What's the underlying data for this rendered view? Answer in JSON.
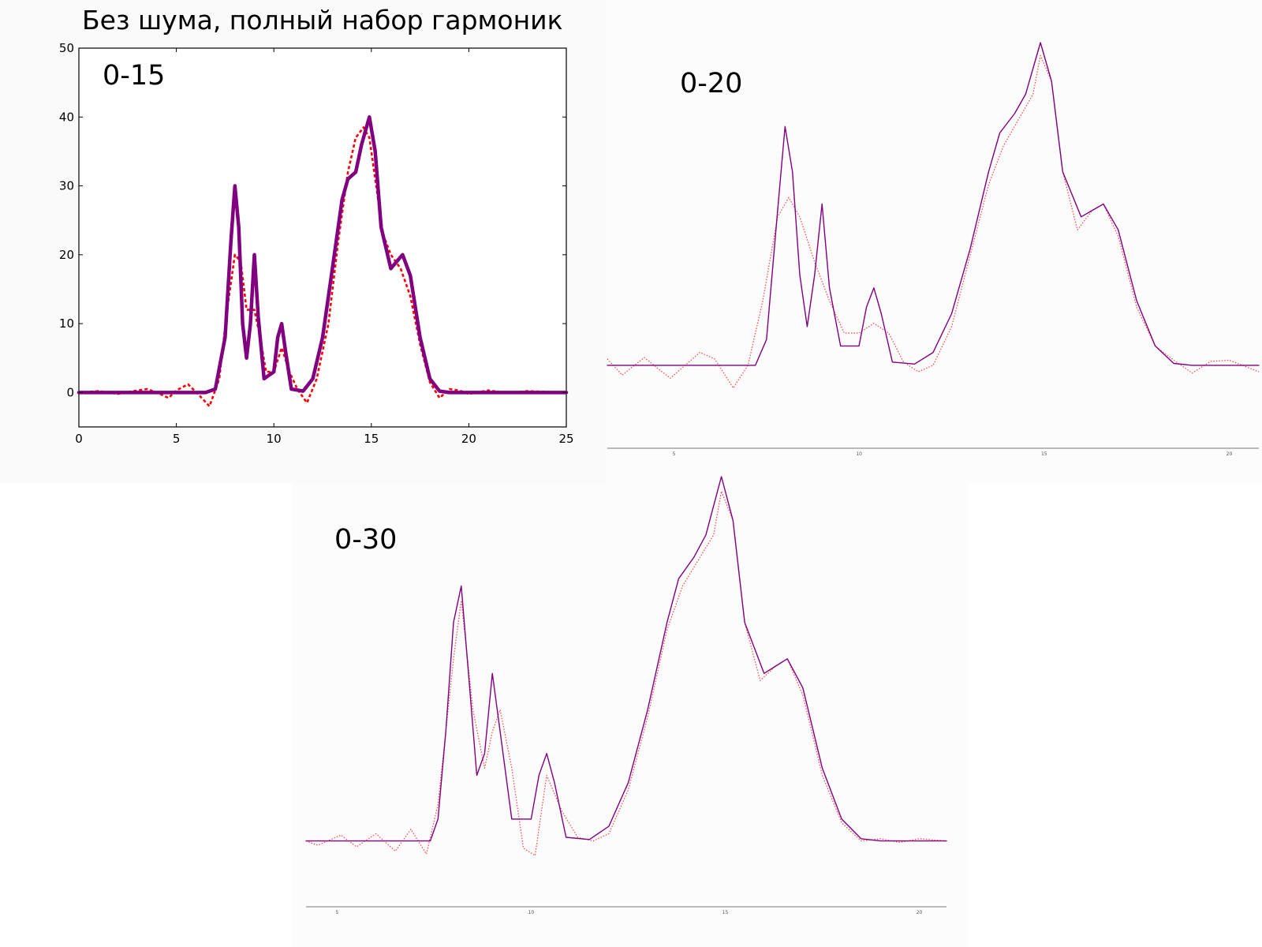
{
  "slide": {
    "title": "Без шума, полный набор гармоник"
  },
  "colors": {
    "original": "#800080",
    "reconstruction": "#ff0000"
  },
  "chart_data": [
    {
      "type": "line",
      "label": "0-15",
      "xlim": [
        0,
        25
      ],
      "ylim": [
        -5,
        50
      ],
      "xticks": [
        0,
        5,
        10,
        15,
        20,
        25
      ],
      "yticks": [
        0,
        10,
        20,
        30,
        40,
        50
      ],
      "grid": false,
      "series": [
        {
          "role": "original",
          "style": "solid-thick",
          "x": [
            0,
            6.5,
            7.0,
            7.5,
            7.8,
            8.0,
            8.2,
            8.4,
            8.6,
            8.8,
            9.0,
            9.2,
            9.5,
            10.0,
            10.2,
            10.4,
            10.6,
            10.9,
            11.5,
            12.0,
            12.5,
            13.0,
            13.5,
            13.8,
            14.2,
            14.5,
            14.9,
            15.2,
            15.5,
            16.0,
            16.3,
            16.6,
            17.0,
            17.5,
            18.0,
            18.5,
            19.0,
            25
          ],
          "y": [
            0,
            0,
            0.5,
            8,
            22,
            30,
            24,
            10,
            5,
            10,
            20,
            11,
            2,
            3,
            8,
            10,
            6,
            0.5,
            0.2,
            2,
            8,
            18,
            28,
            31,
            32,
            36,
            40,
            35,
            24,
            18,
            19,
            20,
            17,
            8,
            2,
            0.2,
            0,
            0
          ]
        },
        {
          "role": "reconstruction",
          "style": "dashed",
          "harmonics": "0-15",
          "x": [
            0,
            1,
            2,
            3,
            3.5,
            4,
            4.6,
            5,
            5.6,
            6.2,
            6.7,
            7.2,
            7.6,
            8.0,
            8.3,
            8.6,
            9.0,
            9.3,
            9.6,
            10.0,
            10.4,
            10.8,
            11.2,
            11.7,
            12.2,
            12.8,
            13.3,
            13.8,
            14.2,
            14.6,
            14.9,
            15.2,
            15.6,
            16.0,
            16.5,
            17.0,
            17.5,
            18.0,
            18.5,
            19.0,
            19.5,
            20.0,
            21.0,
            22.0,
            23.0,
            25
          ],
          "y": [
            0,
            0.2,
            -0.2,
            0.3,
            0.5,
            0,
            -0.8,
            0.3,
            1.2,
            -0.5,
            -2,
            2,
            12,
            20,
            19,
            12,
            12,
            8,
            3,
            3,
            6.5,
            3,
            0.5,
            -1.5,
            2,
            10,
            22,
            32,
            37,
            38.5,
            37,
            31,
            23,
            20,
            18,
            14,
            7,
            1.5,
            -0.8,
            0.5,
            0.3,
            -0.2,
            0.3,
            -0.1,
            0.2,
            0
          ]
        }
      ]
    },
    {
      "type": "line",
      "label": "0-20",
      "xlim": [
        3.2,
        20.8
      ],
      "ylim": [
        -6,
        50
      ],
      "xticks": [
        5,
        10,
        15,
        20
      ],
      "grid": false,
      "series": [
        {
          "role": "original",
          "style": "solid-thin",
          "x": [
            3.2,
            7.2,
            7.5,
            7.8,
            8.0,
            8.2,
            8.4,
            8.6,
            8.8,
            9.0,
            9.2,
            9.5,
            10.0,
            10.2,
            10.4,
            10.6,
            10.9,
            11.5,
            12.0,
            12.5,
            13.0,
            13.5,
            13.8,
            14.2,
            14.5,
            14.9,
            15.2,
            15.5,
            16.0,
            16.3,
            16.6,
            17.0,
            17.5,
            18.0,
            18.5,
            19.0,
            20.8
          ],
          "y": [
            0,
            0,
            4,
            24,
            37,
            30,
            14,
            6,
            14,
            25,
            12,
            3,
            3,
            9,
            12,
            8,
            0.5,
            0.2,
            2,
            8,
            18,
            30,
            36,
            39,
            42,
            50,
            44,
            30,
            23,
            24,
            25,
            21,
            10,
            3,
            0.3,
            0,
            0
          ]
        },
        {
          "role": "reconstruction",
          "style": "dotted",
          "harmonics": "0-20",
          "x": [
            3.2,
            3.6,
            4.2,
            4.9,
            5.7,
            6.1,
            6.6,
            7.0,
            7.4,
            7.8,
            8.1,
            8.4,
            8.8,
            9.2,
            9.6,
            10.0,
            10.4,
            10.8,
            11.2,
            11.6,
            12.0,
            12.5,
            13.0,
            13.5,
            13.9,
            14.3,
            14.7,
            14.9,
            15.2,
            15.5,
            15.9,
            16.3,
            16.6,
            17.0,
            17.5,
            18.0,
            18.5,
            19.0,
            19.5,
            20.0,
            20.8
          ],
          "y": [
            1,
            -1.5,
            1.2,
            -2,
            2,
            1,
            -3.5,
            0,
            10,
            23,
            26,
            23,
            16,
            10,
            5,
            5,
            6.5,
            5,
            0.5,
            -1,
            0,
            6,
            17,
            28,
            34,
            38,
            42,
            48,
            44,
            30,
            21,
            24,
            25,
            20,
            9,
            3,
            0.8,
            -1.2,
            0.6,
            0.8,
            -1
          ]
        }
      ]
    },
    {
      "type": "line",
      "label": "0-30",
      "xlim": [
        4.2,
        20.7
      ],
      "ylim": [
        -6,
        50
      ],
      "xticks": [
        5,
        10,
        15,
        20
      ],
      "grid": false,
      "series": [
        {
          "role": "original",
          "style": "solid-thin",
          "x": [
            4.2,
            7.4,
            7.6,
            7.8,
            8.0,
            8.2,
            8.4,
            8.6,
            8.8,
            9.0,
            9.2,
            9.5,
            10.0,
            10.2,
            10.4,
            10.6,
            10.9,
            11.5,
            12.0,
            12.5,
            13.0,
            13.5,
            13.8,
            14.2,
            14.5,
            14.9,
            15.2,
            15.5,
            16.0,
            16.3,
            16.6,
            17.0,
            17.5,
            18.0,
            18.5,
            19.0,
            20.7
          ],
          "y": [
            0,
            0,
            3,
            15,
            30,
            35,
            22,
            9,
            12,
            23,
            15,
            3,
            3,
            9,
            12,
            8,
            0.5,
            0.2,
            2,
            8,
            18,
            30,
            36,
            39,
            42,
            50,
            44,
            30,
            23,
            24,
            25,
            21,
            10,
            3,
            0.3,
            0,
            0
          ]
        },
        {
          "role": "reconstruction",
          "style": "dotted",
          "harmonics": "0-30",
          "x": [
            4.2,
            4.5,
            5.1,
            5.5,
            6.0,
            6.5,
            6.9,
            7.3,
            7.6,
            8.0,
            8.2,
            8.5,
            8.8,
            9.0,
            9.2,
            9.5,
            9.8,
            10.1,
            10.4,
            10.8,
            11.2,
            11.6,
            12.0,
            12.5,
            13.0,
            13.5,
            13.9,
            14.3,
            14.7,
            14.9,
            15.2,
            15.5,
            15.9,
            16.3,
            16.6,
            17.0,
            17.5,
            18.0,
            18.5,
            19.0,
            19.5,
            20.0,
            20.7
          ],
          "y": [
            0,
            -0.6,
            0.8,
            -0.8,
            1,
            -1.4,
            1.6,
            -1.8,
            5,
            25,
            33,
            18,
            10,
            15,
            18,
            10,
            -1,
            -2,
            9,
            4,
            0.5,
            0,
            1,
            7,
            17,
            29,
            35,
            38.5,
            42,
            48,
            44,
            30,
            22,
            24,
            25,
            20,
            9,
            2.5,
            0,
            0.3,
            -0.2,
            0.3,
            0
          ]
        }
      ]
    }
  ]
}
